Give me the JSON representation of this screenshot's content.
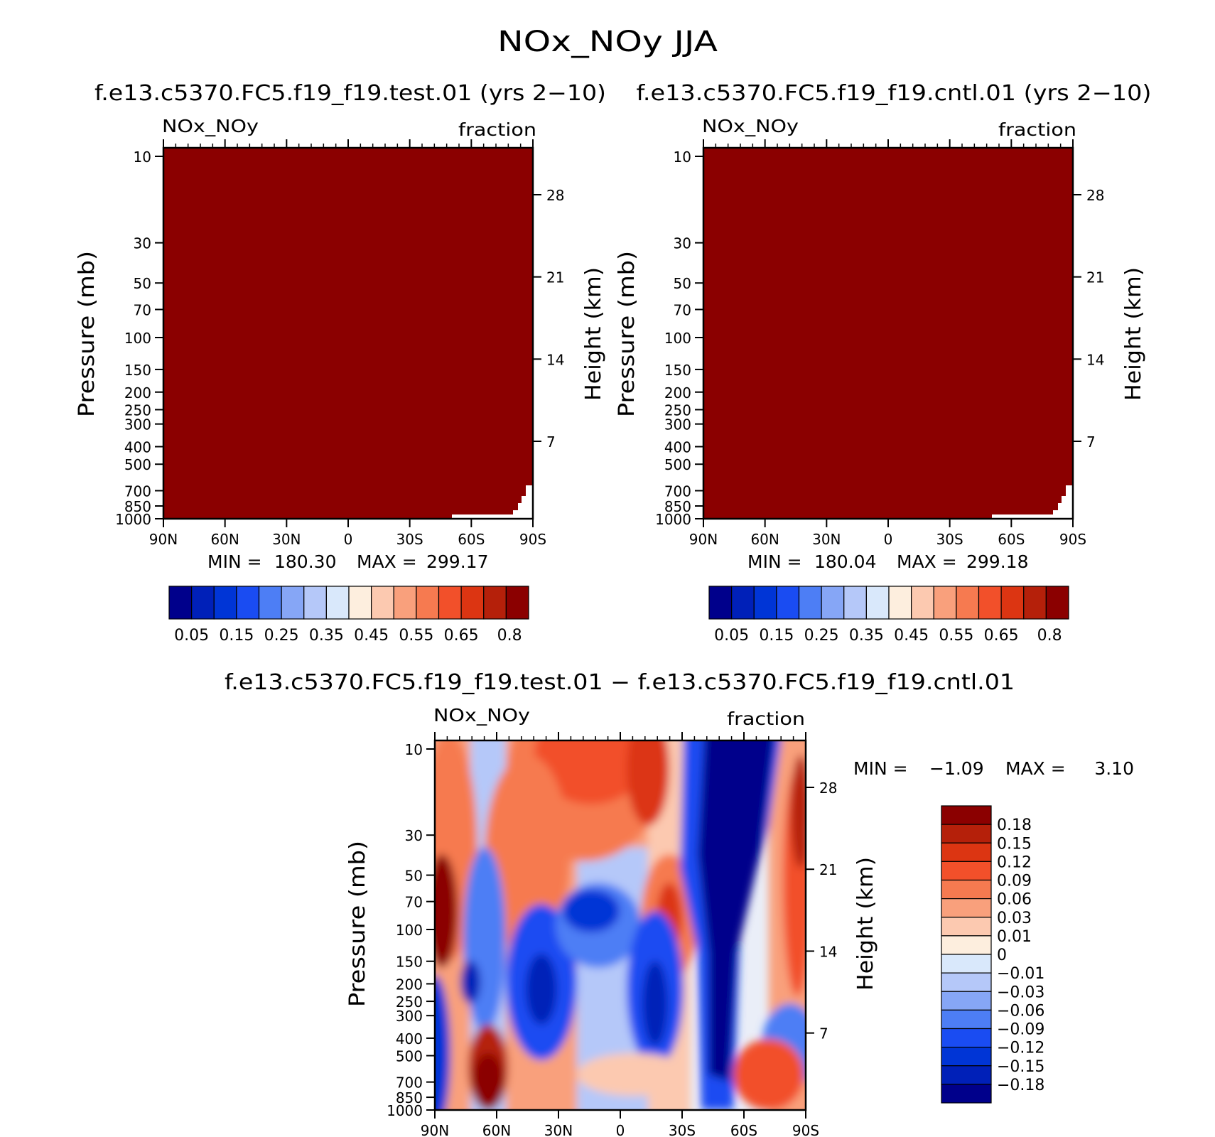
{
  "figure": {
    "title": "NOx_NOy JJA",
    "diff_title": "f.e13.c5370.FC5.f19_f19.test.01 − f.e13.c5370.FC5.f19_f19.cntl.01"
  },
  "colors": {
    "fill": "#8b0000",
    "abs_scale": [
      "#00008b",
      "#0020b8",
      "#0035d6",
      "#1a4cf2",
      "#4d7ef5",
      "#86a6f6",
      "#b5c8f9",
      "#d9e8fb",
      "#fdeede",
      "#fcc9b0",
      "#f9a07c",
      "#f67a50",
      "#f2502a",
      "#dc3512",
      "#b5200a",
      "#8b0000"
    ],
    "diff_scale": [
      "#00008b",
      "#0020b8",
      "#0035d6",
      "#1a4cf2",
      "#4d7ef5",
      "#86a6f6",
      "#b5c8f9",
      "#d9e8fb",
      "#fdeede",
      "#fcc9b0",
      "#f9a07c",
      "#f67a50",
      "#f2502a",
      "#dc3512",
      "#b5200a",
      "#8b0000"
    ]
  },
  "chart_data": [
    {
      "type": "heatmap",
      "title": "f.e13.c5370.FC5.f19_f19.test.01 (yrs 2−10)",
      "variable": "NOx_NOy",
      "units": "fraction",
      "ylabel": "Pressure (mb)",
      "y2label": "Height (km)",
      "x_ticks": [
        "90N",
        "60N",
        "30N",
        "0",
        "30S",
        "60S",
        "90S"
      ],
      "y_ticks": [
        "10",
        "30",
        "50",
        "70",
        "100",
        "150",
        "200",
        "250",
        "300",
        "400",
        "500",
        "700",
        "850",
        "1000"
      ],
      "y2_ticks": [
        "28",
        "21",
        "14",
        "7"
      ],
      "min_label": "MIN =",
      "min": "180.30",
      "max_label": "MAX =",
      "max": "299.17",
      "colorbar_labels": [
        "0.05",
        "0.15",
        "0.25",
        "0.35",
        "0.45",
        "0.55",
        "0.65",
        "0.8"
      ]
    },
    {
      "type": "heatmap",
      "title": "f.e13.c5370.FC5.f19_f19.cntl.01 (yrs 2−10)",
      "variable": "NOx_NOy",
      "units": "fraction",
      "ylabel": "Pressure (mb)",
      "y2label": "Height (km)",
      "x_ticks": [
        "90N",
        "60N",
        "30N",
        "0",
        "30S",
        "60S",
        "90S"
      ],
      "y_ticks": [
        "10",
        "30",
        "50",
        "70",
        "100",
        "150",
        "200",
        "250",
        "300",
        "400",
        "500",
        "700",
        "850",
        "1000"
      ],
      "y2_ticks": [
        "28",
        "21",
        "14",
        "7"
      ],
      "min_label": "MIN =",
      "min": "180.04",
      "max_label": "MAX =",
      "max": "299.18",
      "colorbar_labels": [
        "0.05",
        "0.15",
        "0.25",
        "0.35",
        "0.45",
        "0.55",
        "0.65",
        "0.8"
      ]
    },
    {
      "type": "heatmap",
      "title": "f.e13.c5370.FC5.f19_f19.test.01 − f.e13.c5370.FC5.f19_f19.cntl.01",
      "variable": "NOx_NOy",
      "units": "fraction",
      "ylabel": "Pressure (mb)",
      "y2label": "Height (km)",
      "x_ticks": [
        "90N",
        "60N",
        "30N",
        "0",
        "30S",
        "60S",
        "90S"
      ],
      "y_ticks": [
        "10",
        "30",
        "50",
        "70",
        "100",
        "150",
        "200",
        "250",
        "300",
        "400",
        "500",
        "700",
        "850",
        "1000"
      ],
      "y2_ticks": [
        "28",
        "21",
        "14",
        "7"
      ],
      "min_label": "MIN =",
      "min": "−1.09",
      "max_label": "MAX =",
      "max": "3.10",
      "colorbar_labels": [
        "0.18",
        "0.15",
        "0.12",
        "0.09",
        "0.06",
        "0.03",
        "0.01",
        "0",
        "−0.01",
        "−0.03",
        "−0.06",
        "−0.09",
        "−0.12",
        "−0.15",
        "−0.18"
      ]
    }
  ]
}
